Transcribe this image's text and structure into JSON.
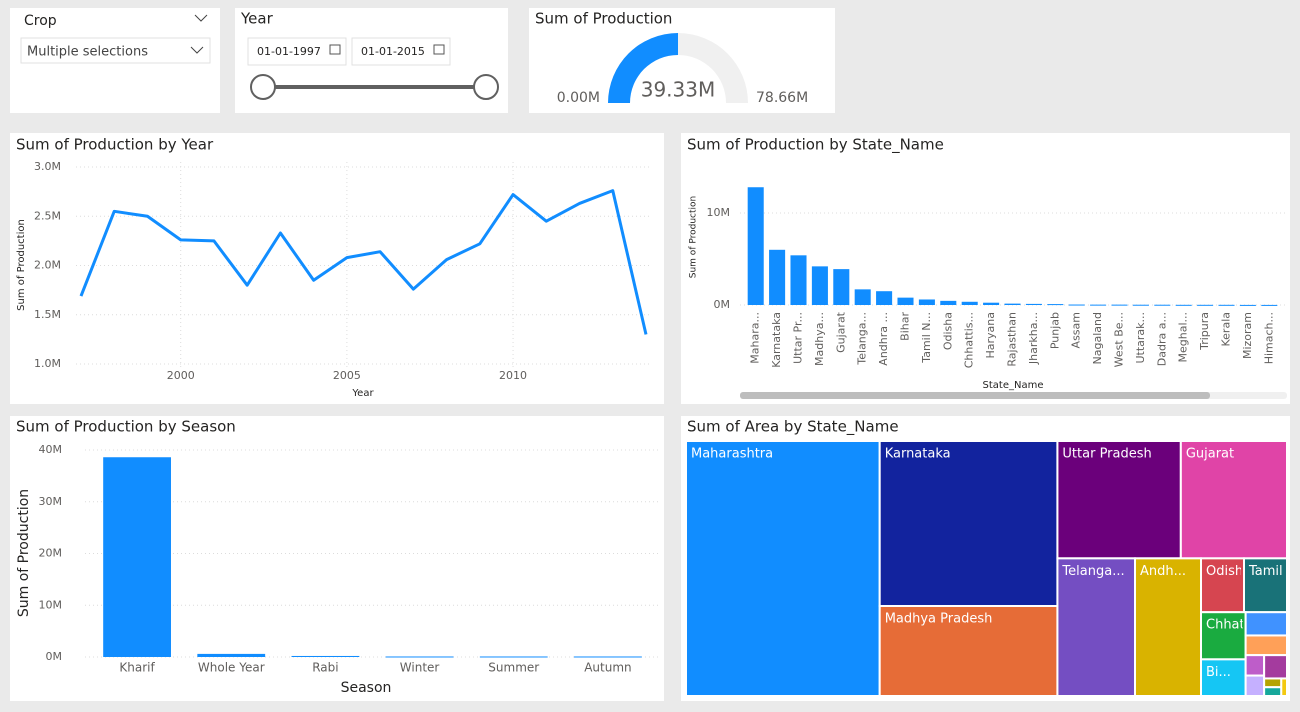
{
  "slicers": {
    "crop": {
      "label": "Crop",
      "value": "Multiple selections"
    },
    "year": {
      "label": "Year",
      "start": "01-01-1997",
      "end": "01-01-2015"
    }
  },
  "chart_data": [
    {
      "type": "gauge",
      "title": "Sum of Production",
      "value": 39330000,
      "value_label": "39.33M",
      "range": [
        {
          "value": 0,
          "label": "0.00M"
        },
        {
          "value": 78660000,
          "label": "78.66M"
        }
      ],
      "color": "#118dff"
    },
    {
      "type": "line",
      "title": "Sum of Production by Year",
      "x_label": "Year",
      "y_label": "Sum of Production",
      "x": [
        1997,
        1998,
        1999,
        2000,
        2001,
        2002,
        2003,
        2004,
        2005,
        2006,
        2007,
        2008,
        2009,
        2010,
        2011,
        2012,
        2013,
        2014
      ],
      "values": [
        1690000,
        2550000,
        2500000,
        2260000,
        2250000,
        1800000,
        2330000,
        1850000,
        2080000,
        2140000,
        1760000,
        2060000,
        2220000,
        2720000,
        2450000,
        2630000,
        2760000,
        1300000
      ],
      "color": "#118dff",
      "xlim": [
        1997,
        2014
      ],
      "xticks": [
        2000,
        2005,
        2010
      ],
      "ylim": [
        1000000,
        3000000
      ],
      "yticks": [
        {
          "value": 1000000,
          "label": "1.0M"
        },
        {
          "value": 1500000,
          "label": "1.5M"
        },
        {
          "value": 2000000,
          "label": "2.0M"
        },
        {
          "value": 2500000,
          "label": "2.5M"
        },
        {
          "value": 3000000,
          "label": "3.0M"
        }
      ],
      "grid": true
    },
    {
      "type": "bar",
      "title": "Sum of Production by State_Name",
      "x_label": "State_Name",
      "y_label": "Sum of Production",
      "categories": [
        "Mahara...",
        "Karnataka",
        "Uttar Pr...",
        "Madhya...",
        "Gujarat",
        "Telanga...",
        "Andhra ...",
        "Bihar",
        "Tamil N...",
        "Odisha",
        "Chhattis...",
        "Haryana",
        "Rajasthan",
        "Jharkha...",
        "Punjab",
        "Assam",
        "Nagaland",
        "West Be...",
        "Uttarak...",
        "Dadra a...",
        "Meghal...",
        "Tripura",
        "Kerala",
        "Mizoram",
        "Himach..."
      ],
      "values": [
        12800000,
        6000000,
        5400000,
        4200000,
        3900000,
        1700000,
        1500000,
        800000,
        600000,
        450000,
        350000,
        250000,
        150000,
        120000,
        100000,
        50000,
        40000,
        40000,
        30000,
        30000,
        20000,
        20000,
        20000,
        10000,
        10000
      ],
      "color": "#118dff",
      "ylim": [
        0,
        14000000
      ],
      "yticks": [
        {
          "value": 0,
          "label": "0M"
        },
        {
          "value": 10000000,
          "label": "10M"
        }
      ],
      "grid": true
    },
    {
      "type": "bar",
      "title": "Sum of Production by Season",
      "x_label": "Season",
      "y_label": "Sum of Production",
      "categories": [
        "Kharif",
        "Whole Year",
        "Rabi",
        "Winter",
        "Summer",
        "Autumn"
      ],
      "values": [
        38600000,
        600000,
        200000,
        100000,
        100000,
        100000
      ],
      "color": "#118dff",
      "ylim": [
        0,
        40000000
      ],
      "yticks": [
        {
          "value": 0,
          "label": "0M"
        },
        {
          "value": 10000000,
          "label": "10M"
        },
        {
          "value": 20000000,
          "label": "20M"
        },
        {
          "value": 30000000,
          "label": "30M"
        },
        {
          "value": 40000000,
          "label": "40M"
        }
      ],
      "grid": true
    },
    {
      "type": "treemap",
      "title": "Sum of Area by State_Name",
      "categories": [
        "Maharashtra",
        "Karnataka",
        "Madhya Pradesh",
        "Uttar Pradesh",
        "Gujarat",
        "Telanga...",
        "Andh...",
        "Odisha",
        "Tamil N...",
        "Chhattis...",
        "Bi...",
        null,
        null,
        null,
        null,
        null,
        null,
        null,
        null
      ],
      "values": [
        49280,
        29260,
        15960,
        14448,
        12432,
        10653,
        9063,
        2310,
        2310,
        2100,
        1632,
        960,
        812,
        377,
        377,
        532,
        150,
        150,
        100
      ],
      "colors": [
        "#118dff",
        "#12239e",
        "#e66c37",
        "#6b007b",
        "#e044a7",
        "#744ec2",
        "#d9b300",
        "#d64550",
        "#197278",
        "#1aab40",
        "#15c6f4",
        "#4092ff",
        "#ffa058",
        "#be5dc9",
        "#c5b0ff",
        "#a43b9e",
        "#b5a300",
        "#16a89b",
        "#f3c911"
      ]
    }
  ]
}
